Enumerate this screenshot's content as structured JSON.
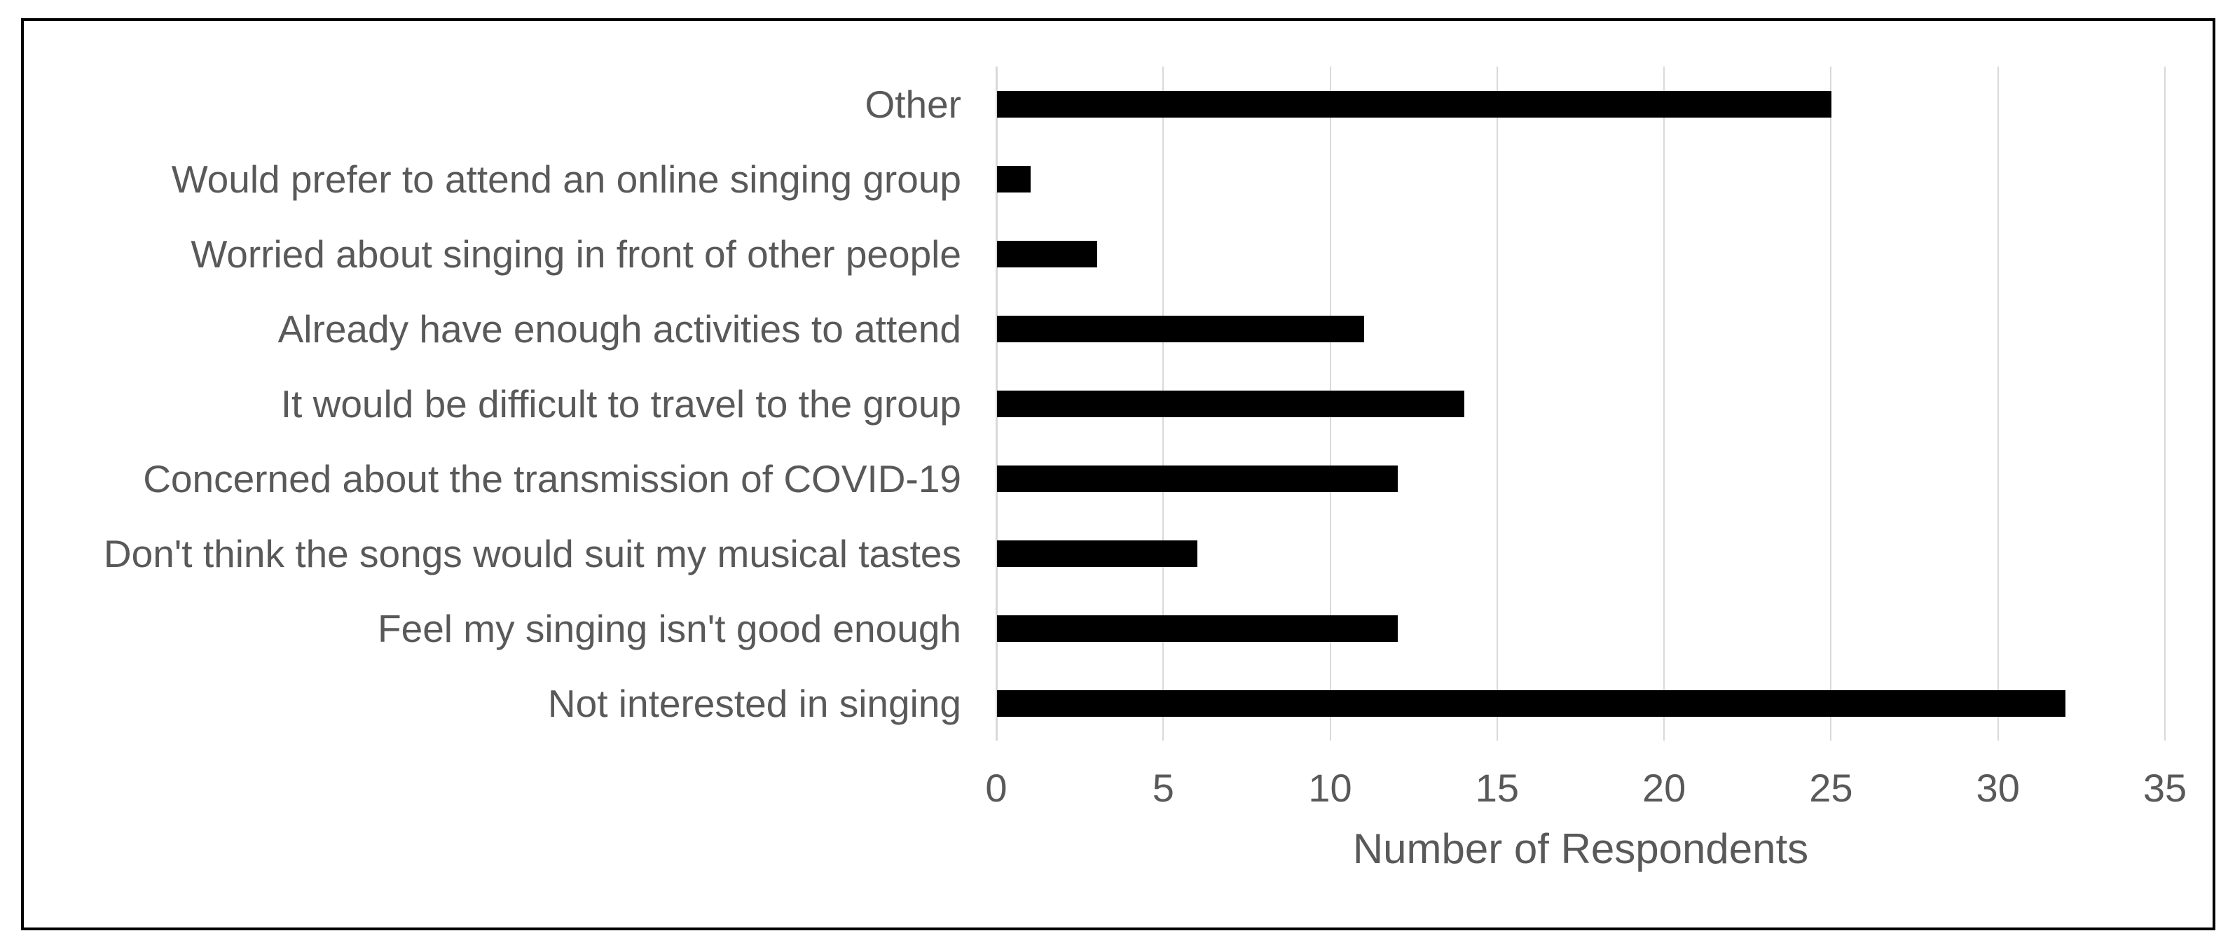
{
  "chart_data": {
    "type": "bar",
    "orientation": "horizontal",
    "title": "",
    "xlabel": "Number of Respondents",
    "ylabel": "",
    "categories": [
      "Other",
      "Would prefer to attend an online singing group",
      "Worried about singing in front of other people",
      "Already have enough activities to attend",
      "It would be difficult to travel to the group",
      "Concerned about the transmission of COVID-19",
      "Don't think the songs would suit my musical tastes",
      "Feel my singing isn't good enough",
      "Not interested in singing"
    ],
    "values": [
      25,
      1,
      3,
      11,
      14,
      12,
      6,
      12,
      32
    ],
    "xlim": [
      0,
      35
    ],
    "xticks": [
      0,
      5,
      10,
      15,
      20,
      25,
      30,
      35
    ],
    "grid": true,
    "legend": false,
    "bar_color": "#000000",
    "gridline_color": "#d9d9d9",
    "text_color": "#595959",
    "border_color": "#000000",
    "background_color": "#ffffff"
  }
}
